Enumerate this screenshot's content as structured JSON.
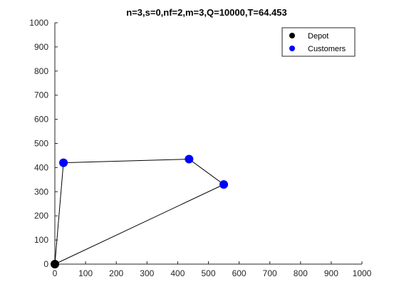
{
  "chart_data": {
    "type": "scatter",
    "title": "n=3,s=0,nf=2,m=3,Q=10000,T=64.453",
    "xlabel": "",
    "ylabel": "",
    "xlim": [
      0,
      1000
    ],
    "ylim": [
      0,
      1000
    ],
    "xticks": [
      0,
      100,
      200,
      300,
      400,
      500,
      600,
      700,
      800,
      900,
      1000
    ],
    "yticks": [
      0,
      100,
      200,
      300,
      400,
      500,
      600,
      700,
      800,
      900,
      1000
    ],
    "grid": false,
    "legend_position": "top-right",
    "series": [
      {
        "name": "Depot",
        "color": "#000000",
        "points": [
          [
            0,
            0
          ]
        ]
      },
      {
        "name": "Customers",
        "color": "#0000ff",
        "points": [
          [
            28,
            420
          ],
          [
            437,
            435
          ],
          [
            550,
            330
          ]
        ]
      }
    ],
    "route": {
      "color": "#000000",
      "points": [
        [
          0,
          0
        ],
        [
          28,
          420
        ],
        [
          437,
          435
        ],
        [
          550,
          330
        ],
        [
          0,
          0
        ]
      ]
    }
  }
}
